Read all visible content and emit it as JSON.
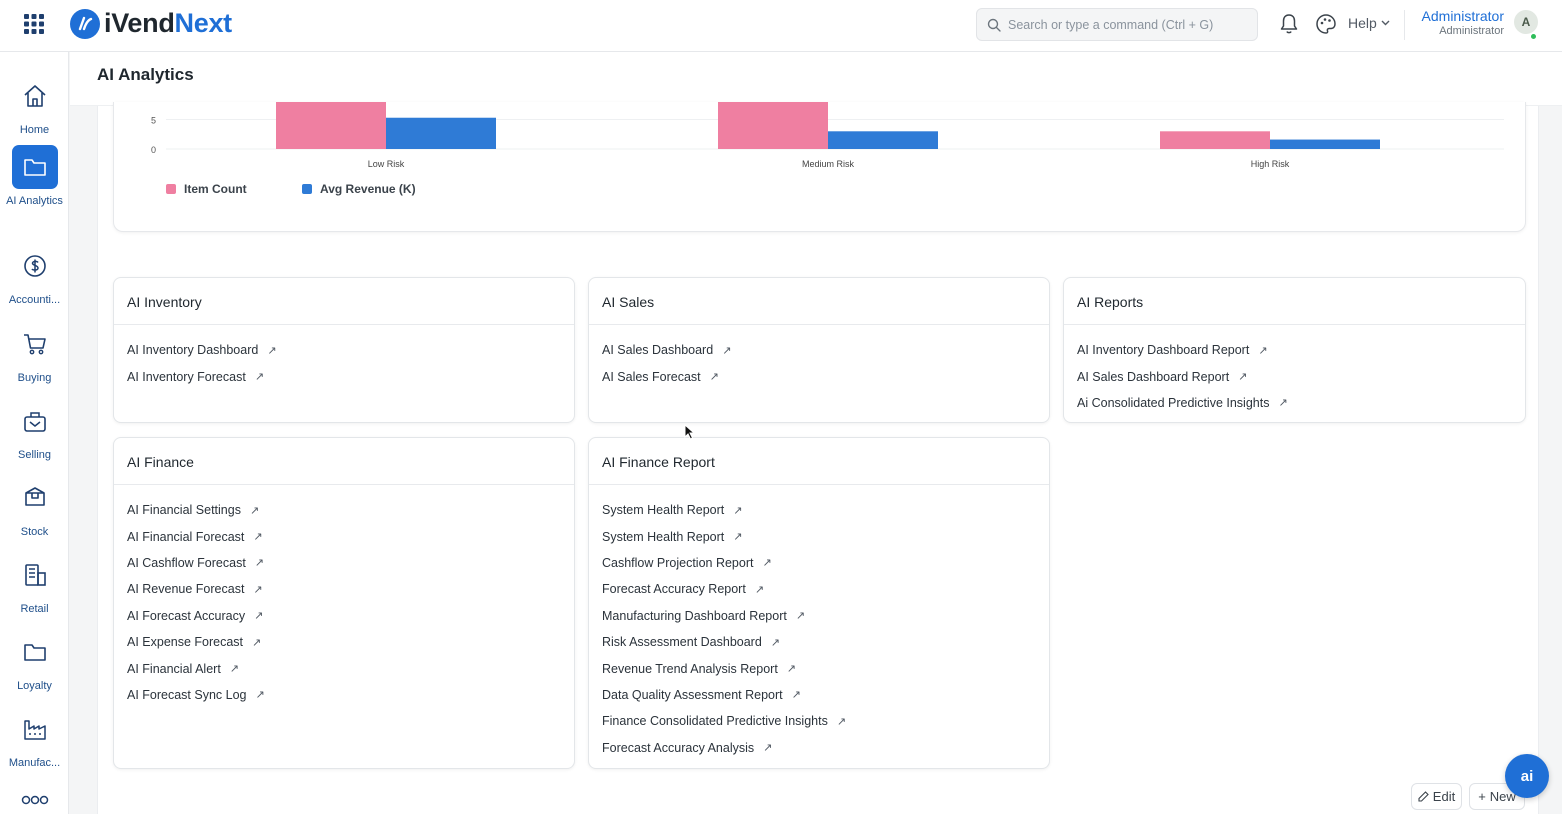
{
  "app": {
    "logo_prefix": "iVend",
    "logo_suffix": "Next",
    "brand_color": "#1f6fd6"
  },
  "header": {
    "search_placeholder": "Search or type a command (Ctrl + G)",
    "help_label": "Help",
    "user_name": "Administrator",
    "user_role": "Administrator",
    "avatar_initial": "A"
  },
  "sidebar": {
    "items": [
      {
        "label": "Home",
        "icon": "home-icon"
      },
      {
        "label": "AI Analytics",
        "icon": "folder-icon",
        "active": true
      },
      {
        "label": "Accounti...",
        "icon": "dollar-icon"
      },
      {
        "label": "Buying",
        "icon": "cart-icon"
      },
      {
        "label": "Selling",
        "icon": "selling-icon"
      },
      {
        "label": "Stock",
        "icon": "box-icon"
      },
      {
        "label": "Retail",
        "icon": "retail-icon"
      },
      {
        "label": "Loyalty",
        "icon": "folder-icon"
      },
      {
        "label": "Manufac...",
        "icon": "factory-icon"
      },
      {
        "label": "",
        "icon": "more-icon"
      }
    ]
  },
  "page": {
    "title": "AI Analytics"
  },
  "chart_data": {
    "type": "bar",
    "categories": [
      "Low Risk",
      "Medium Risk",
      "High Risk"
    ],
    "series": [
      {
        "name": "Item Count",
        "color": "#ef7fa1",
        "values": [
          8,
          8,
          3
        ]
      },
      {
        "name": "Avg Revenue (K)",
        "color": "#2f7bd6",
        "values": [
          5.3,
          3,
          1.6
        ]
      }
    ],
    "y_ticks": [
      "5",
      "0"
    ],
    "legend_position": "bottom-left"
  },
  "cards": {
    "inventory": {
      "title": "AI Inventory",
      "links": [
        "AI Inventory Dashboard",
        "AI Inventory Forecast"
      ]
    },
    "sales": {
      "title": "AI Sales",
      "links": [
        "AI Sales Dashboard",
        "AI Sales Forecast"
      ]
    },
    "reports": {
      "title": "AI Reports",
      "links": [
        "AI Inventory Dashboard Report",
        "AI Sales Dashboard Report",
        "Ai Consolidated Predictive Insights"
      ]
    },
    "finance": {
      "title": "AI Finance",
      "links": [
        "AI Financial Settings",
        "AI Financial Forecast",
        "AI Cashflow Forecast",
        "AI Revenue Forecast",
        "AI Forecast Accuracy",
        "AI Expense Forecast",
        "AI Financial Alert",
        "AI Forecast Sync Log"
      ]
    },
    "finance_report": {
      "title": "AI Finance Report",
      "links": [
        "System Health Report",
        "System Health Report",
        "Cashflow Projection Report",
        "Forecast Accuracy Report",
        "Manufacturing Dashboard Report",
        "Risk Assessment Dashboard",
        "Revenue Trend Analysis Report",
        "Data Quality Assessment Report",
        "Finance Consolidated Predictive Insights",
        "Forecast Accuracy Analysis"
      ]
    }
  },
  "footer": {
    "edit_label": "Edit",
    "new_label": "New",
    "assistant_label": "ai"
  }
}
